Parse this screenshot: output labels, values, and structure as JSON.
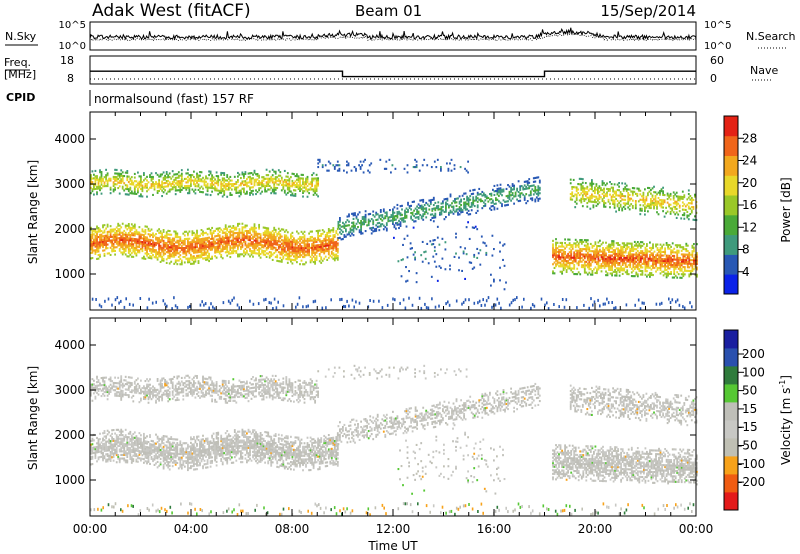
{
  "header": {
    "station": "Adak West (fitACF)",
    "beam": "Beam 01",
    "date": "15/Sep/2014"
  },
  "chart_data": [
    {
      "type": "line",
      "panel": "noise",
      "left_label": "N.Sky",
      "right_label": "N.Search",
      "left_ticks": [
        "10^5",
        "10^0"
      ],
      "right_ticks": [
        "10^5",
        "10^0"
      ],
      "scale": "log",
      "series": [
        {
          "name": "N.Sky",
          "style": "solid"
        },
        {
          "name": "N.Search",
          "style": "dotted"
        }
      ]
    },
    {
      "type": "line",
      "panel": "frequency",
      "left_label_lines": [
        "Freq.",
        "[MHz]"
      ],
      "right_label": "Nave",
      "left_ticks": [
        "18",
        "8"
      ],
      "right_ticks": [
        "60",
        "0"
      ],
      "freq_steps": [
        {
          "x": [
            0,
            10
          ],
          "mhz": 14
        },
        {
          "x": [
            10,
            18
          ],
          "mhz": 11
        },
        {
          "x": [
            18,
            24
          ],
          "mhz": 14
        }
      ],
      "nave": 10
    },
    {
      "type": "table",
      "panel": "cpid",
      "label": "CPID",
      "value": "normalsound (fast) 157 RF"
    },
    {
      "type": "heatmap",
      "panel": "power",
      "ylabel": "Slant Range [km]",
      "yticks": [
        "1000",
        "2000",
        "3000",
        "4000"
      ],
      "ylim": [
        200,
        4600
      ],
      "xlim": [
        0,
        24
      ],
      "colorbar": {
        "label": "Power [dB]",
        "ticks": [
          "4",
          "8",
          "12",
          "16",
          "20",
          "24",
          "28"
        ],
        "range": [
          0,
          32
        ],
        "colors": [
          "#0b22e8",
          "#2858b4",
          "#3f9a7c",
          "#4aaa38",
          "#9ac828",
          "#e8d82a",
          "#f2a81e",
          "#f0651a",
          "#e42215"
        ]
      }
    },
    {
      "type": "heatmap",
      "panel": "velocity",
      "ylabel": "Slant Range [km]",
      "yticks": [
        "1000",
        "2000",
        "3000",
        "4000"
      ],
      "ylim": [
        200,
        4600
      ],
      "xlim": [
        0,
        24
      ],
      "xticks": [
        "00:00",
        "04:00",
        "08:00",
        "12:00",
        "16:00",
        "20:00",
        "00:00"
      ],
      "xlabel": "Time UT",
      "colorbar": {
        "label_main": "Velocity [m s",
        "label_sup": "-1",
        "label_end": "]",
        "ticks": [
          "200",
          "100",
          "50",
          "15",
          "-15",
          "-50",
          "-100",
          "-200"
        ],
        "range": [
          -250,
          250
        ],
        "colors": [
          "#e41a1a",
          "#f05c12",
          "#f7a21a",
          "#c0c0b4",
          "#c8c8c4",
          "#bfbfb8",
          "#56c834",
          "#2f7b3c",
          "#2a50ae",
          "#1a1fa0"
        ]
      }
    }
  ]
}
